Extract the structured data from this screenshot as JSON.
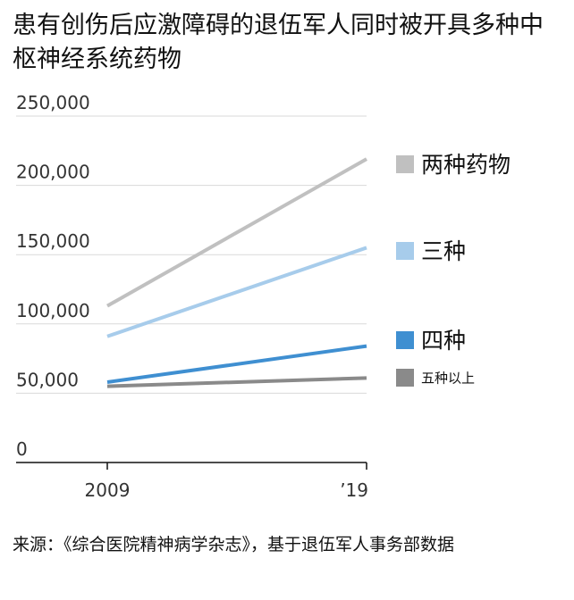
{
  "title": "患有创伤后应激障碍的退伍军人同时被开具多种中枢神经系统药物",
  "source": "来源：《综合医院精神病学杂志》，基于退伍军人事务部数据",
  "chart_data": {
    "type": "line",
    "x": [
      "2009",
      "2019"
    ],
    "xticklabels": [
      "2009",
      "’19"
    ],
    "ylim": [
      0,
      250000
    ],
    "yticks": [
      0,
      50000,
      100000,
      150000,
      200000,
      250000
    ],
    "yticklabels": [
      "0",
      "50,000",
      "100,000",
      "150,000",
      "200,000",
      "250,000"
    ],
    "grid": true,
    "legend": "right",
    "series": [
      {
        "name": "两种药物",
        "values": [
          113000,
          219000
        ],
        "color": "#c0c0c0"
      },
      {
        "name": "三种",
        "values": [
          91000,
          155000
        ],
        "color": "#a7cceb"
      },
      {
        "name": "四种",
        "values": [
          58000,
          84000
        ],
        "color": "#3f8fd1"
      },
      {
        "name": "五种以上",
        "values": [
          55000,
          61000
        ],
        "color": "#8a8a8a"
      }
    ]
  }
}
